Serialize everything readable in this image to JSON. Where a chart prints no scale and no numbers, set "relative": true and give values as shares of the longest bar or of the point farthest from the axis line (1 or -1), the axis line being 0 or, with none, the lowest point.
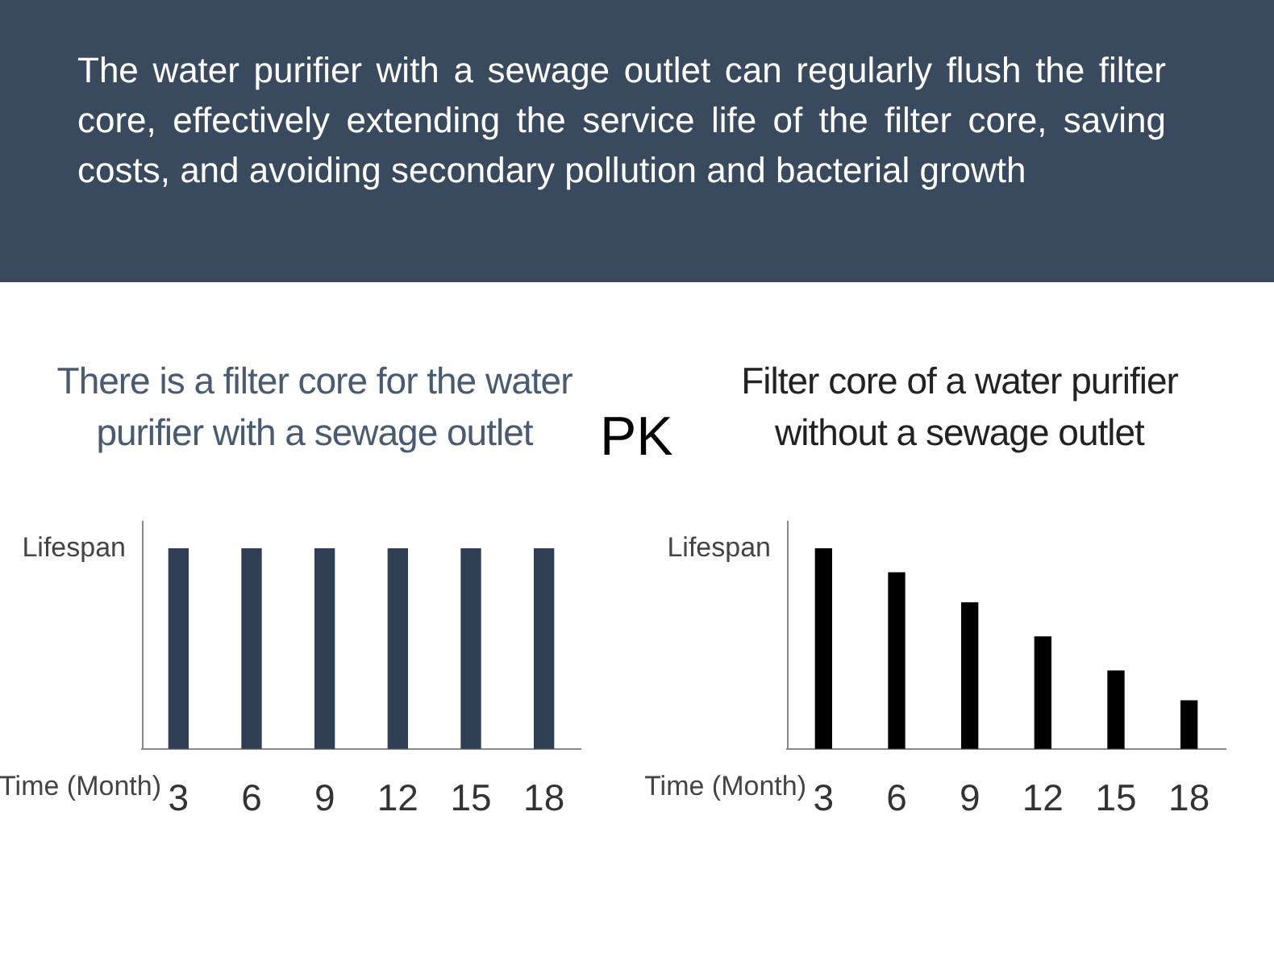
{
  "chart_data": [
    {
      "type": "bar",
      "title": "There is a filter core for the water purifier with a sewage outlet",
      "annotations": [
        "The water purifier with a sewage outlet can regularly flush the filter core, effectively extending the service life of the filter core, saving costs, and avoiding secondary pollution and bacterial growth",
        "PK"
      ],
      "xlabel": "Time (Month)",
      "ylabel": "Lifespan",
      "categories": [
        "3",
        "6",
        "9",
        "12",
        "15",
        "18"
      ],
      "relative": true,
      "color": "#2f3e52",
      "values": [
        1,
        1,
        1,
        1,
        1,
        1
      ]
    },
    {
      "type": "bar",
      "title": "Filter core of a water purifier without a sewage outlet",
      "xlabel": "Time (Month)",
      "ylabel": "Lifespan",
      "categories": [
        "3",
        "6",
        "9",
        "12",
        "15",
        "18"
      ],
      "relative": true,
      "color": "#000000",
      "values": [
        1,
        0.88,
        0.73,
        0.56,
        0.39,
        0.24
      ]
    }
  ]
}
